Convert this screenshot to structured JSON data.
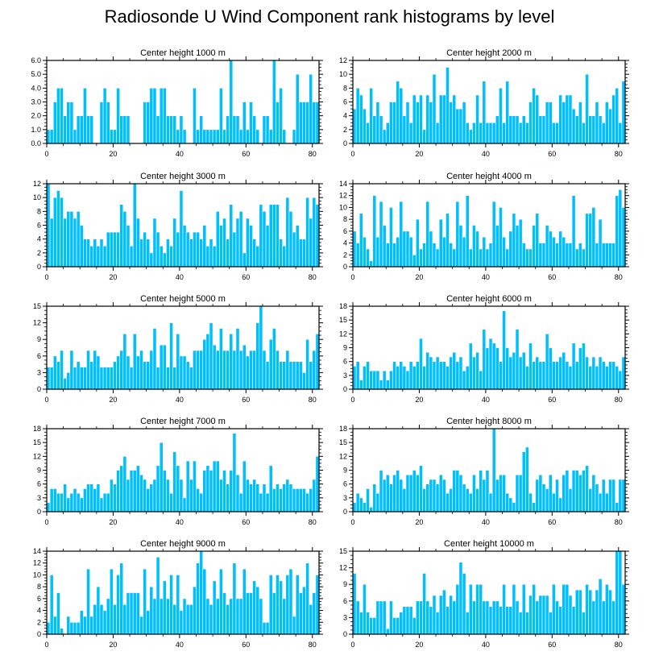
{
  "title": "Radiosonde U Wind Component rank histograms by level",
  "colors": {
    "bar": "#00BFFF",
    "bar_edge": "#ffffff",
    "axis": "#000000"
  },
  "chart_data": [
    {
      "type": "bar",
      "title": "Center height 1000 m",
      "xlim": [
        0,
        82
      ],
      "xticks": [
        0,
        20,
        40,
        60,
        80
      ],
      "ylim": [
        0,
        6
      ],
      "yticks": [
        "0.0",
        "1.0",
        "2.0",
        "3.0",
        "4.0",
        "5.0",
        "6.0"
      ],
      "values": [
        1,
        1,
        3,
        4,
        4,
        2,
        3,
        3,
        1,
        2,
        2,
        4,
        2,
        2,
        0,
        0,
        3,
        4,
        3,
        1,
        1,
        4,
        2,
        2,
        2,
        0,
        0,
        0,
        0,
        3,
        3,
        4,
        4,
        2,
        4,
        4,
        2,
        2,
        2,
        1,
        2,
        1,
        0,
        0,
        4,
        1,
        2,
        1,
        1,
        1,
        1,
        1,
        4,
        1,
        2,
        6,
        2,
        2,
        1,
        3,
        1,
        3,
        2,
        1,
        0,
        2,
        2,
        1,
        6,
        3,
        4,
        1,
        0,
        0,
        1,
        5,
        3,
        3,
        3,
        5,
        3,
        3
      ]
    },
    {
      "type": "bar",
      "title": "Center height 2000 m",
      "xlim": [
        0,
        82
      ],
      "xticks": [
        0,
        20,
        40,
        60,
        80
      ],
      "ylim": [
        0,
        12
      ],
      "yticks": [
        "0",
        "2",
        "4",
        "6",
        "8",
        "10",
        "12"
      ],
      "values": [
        5,
        8,
        7,
        5,
        3,
        8,
        4,
        6,
        4,
        2,
        3,
        6,
        6,
        9,
        8,
        4,
        6,
        3,
        7,
        6,
        7,
        2,
        7,
        6,
        10,
        3,
        7,
        7,
        11,
        6,
        7,
        5,
        5,
        6,
        3,
        2,
        3,
        7,
        3,
        9,
        3,
        3,
        3,
        4,
        8,
        3,
        9,
        4,
        4,
        4,
        3,
        4,
        3,
        6,
        8,
        7,
        4,
        4,
        6,
        6,
        3,
        3,
        7,
        6,
        7,
        7,
        5,
        4,
        6,
        3,
        10,
        4,
        4,
        6,
        4,
        3,
        6,
        5,
        7,
        8,
        3,
        9
      ]
    },
    {
      "type": "bar",
      "title": "Center height 3000 m",
      "xlim": [
        0,
        82
      ],
      "xticks": [
        0,
        20,
        40,
        60,
        80
      ],
      "ylim": [
        0,
        12
      ],
      "yticks": [
        "0",
        "2",
        "4",
        "6",
        "8",
        "10",
        "12"
      ],
      "values": [
        12,
        7,
        10,
        11,
        10,
        7,
        8,
        8,
        7,
        8,
        6,
        4,
        4,
        3,
        4,
        3,
        4,
        3,
        5,
        5,
        5,
        5,
        9,
        8,
        6,
        3,
        12,
        7,
        4,
        5,
        4,
        2,
        7,
        5,
        3,
        2,
        4,
        3,
        7,
        5,
        11,
        6,
        5,
        4,
        5,
        5,
        4,
        6,
        3,
        4,
        3,
        8,
        6,
        7,
        4,
        9,
        5,
        7,
        8,
        2,
        7,
        6,
        4,
        3,
        9,
        8,
        6,
        9,
        9,
        9,
        4,
        3,
        10,
        8,
        5,
        6,
        4,
        4,
        10,
        7,
        10,
        9
      ]
    },
    {
      "type": "bar",
      "title": "Center height 4000 m",
      "xlim": [
        0,
        82
      ],
      "xticks": [
        0,
        20,
        40,
        60,
        80
      ],
      "ylim": [
        0,
        14
      ],
      "yticks": [
        "0",
        "2",
        "4",
        "6",
        "8",
        "10",
        "12",
        "14"
      ],
      "values": [
        6,
        4,
        9,
        5,
        3,
        1,
        12,
        5,
        11,
        7,
        4,
        10,
        4,
        5,
        11,
        6,
        6,
        5,
        2,
        8,
        3,
        4,
        11,
        6,
        4,
        3,
        8,
        5,
        9,
        4,
        3,
        11,
        7,
        5,
        12,
        3,
        7,
        6,
        3,
        5,
        3,
        4,
        11,
        7,
        10,
        5,
        3,
        6,
        9,
        7,
        8,
        4,
        3,
        3,
        7,
        9,
        4,
        4,
        7,
        6,
        5,
        4,
        6,
        5,
        4,
        4,
        12,
        3,
        4,
        3,
        9,
        9,
        10,
        4,
        8,
        4,
        4,
        4,
        4,
        12,
        13,
        10
      ]
    },
    {
      "type": "bar",
      "title": "Center height 5000 m",
      "xlim": [
        0,
        82
      ],
      "xticks": [
        0,
        20,
        40,
        60,
        80
      ],
      "ylim": [
        0,
        15
      ],
      "yticks": [
        "0",
        "3",
        "6",
        "9",
        "12",
        "15"
      ],
      "values": [
        4,
        4,
        6,
        5,
        7,
        2,
        3,
        7,
        4,
        5,
        4,
        4,
        7,
        5,
        7,
        6,
        4,
        4,
        4,
        4,
        5,
        6,
        7,
        10,
        6,
        4,
        10,
        6,
        7,
        5,
        5,
        7,
        11,
        4,
        8,
        8,
        4,
        12,
        4,
        10,
        6,
        6,
        5,
        4,
        7,
        7,
        7,
        9,
        10,
        12,
        8,
        7,
        11,
        7,
        7,
        10,
        7,
        11,
        7,
        8,
        6,
        7,
        7,
        12,
        15,
        7,
        5,
        9,
        11,
        7,
        5,
        5,
        7,
        5,
        5,
        5,
        5,
        3,
        9,
        5,
        7,
        10
      ]
    },
    {
      "type": "bar",
      "title": "Center height 6000 m",
      "xlim": [
        0,
        82
      ],
      "xticks": [
        0,
        20,
        40,
        60,
        80
      ],
      "ylim": [
        0,
        18
      ],
      "yticks": [
        "0",
        "3",
        "6",
        "9",
        "12",
        "15",
        "18"
      ],
      "values": [
        5,
        6,
        2,
        5,
        6,
        4,
        4,
        4,
        2,
        4,
        2,
        4,
        6,
        5,
        6,
        5,
        4,
        6,
        5,
        6,
        11,
        5,
        8,
        7,
        6,
        7,
        6,
        6,
        5,
        7,
        8,
        6,
        7,
        4,
        5,
        10,
        7,
        8,
        4,
        13,
        9,
        11,
        10,
        9,
        6,
        17,
        9,
        7,
        8,
        13,
        7,
        8,
        5,
        10,
        6,
        7,
        6,
        6,
        12,
        9,
        6,
        6,
        7,
        8,
        6,
        5,
        10,
        6,
        9,
        10,
        7,
        5,
        7,
        5,
        7,
        6,
        5,
        6,
        6,
        5,
        4,
        7
      ]
    },
    {
      "type": "bar",
      "title": "Center height 7000 m",
      "xlim": [
        0,
        82
      ],
      "xticks": [
        0,
        20,
        40,
        60,
        80
      ],
      "ylim": [
        0,
        18
      ],
      "yticks": [
        "0",
        "3",
        "6",
        "9",
        "12",
        "15",
        "18"
      ],
      "values": [
        2,
        5,
        5,
        4,
        4,
        6,
        3,
        4,
        5,
        4,
        3,
        5,
        6,
        6,
        5,
        6,
        3,
        4,
        4,
        7,
        6,
        9,
        10,
        12,
        7,
        9,
        9,
        10,
        8,
        7,
        5,
        6,
        7,
        10,
        15,
        9,
        7,
        4,
        13,
        10,
        7,
        3,
        11,
        7,
        11,
        5,
        4,
        9,
        10,
        9,
        11,
        11,
        7,
        9,
        6,
        9,
        17,
        8,
        4,
        11,
        7,
        6,
        7,
        6,
        4,
        6,
        4,
        10,
        5,
        6,
        5,
        6,
        7,
        6,
        5,
        5,
        5,
        5,
        4,
        5,
        7,
        12
      ]
    },
    {
      "type": "bar",
      "title": "Center height 8000 m",
      "xlim": [
        0,
        82
      ],
      "xticks": [
        0,
        20,
        40,
        60,
        80
      ],
      "ylim": [
        0,
        18
      ],
      "yticks": [
        "0",
        "3",
        "6",
        "9",
        "12",
        "15",
        "18"
      ],
      "values": [
        2,
        4,
        3,
        2,
        5,
        1,
        6,
        4,
        9,
        7,
        8,
        6,
        8,
        9,
        7,
        5,
        8,
        8,
        9,
        8,
        10,
        5,
        6,
        7,
        7,
        6,
        8,
        7,
        4,
        5,
        9,
        9,
        8,
        6,
        5,
        4,
        8,
        5,
        9,
        7,
        9,
        4,
        18,
        7,
        8,
        8,
        4,
        3,
        2,
        8,
        8,
        13,
        14,
        4,
        2,
        7,
        8,
        6,
        5,
        8,
        4,
        7,
        3,
        8,
        9,
        5,
        9,
        9,
        8,
        9,
        10,
        5,
        8,
        6,
        4,
        7,
        4,
        7,
        7,
        2,
        7,
        7
      ]
    },
    {
      "type": "bar",
      "title": "Center height 9000 m",
      "xlim": [
        0,
        82
      ],
      "xticks": [
        0,
        20,
        40,
        60,
        80
      ],
      "ylim": [
        0,
        14
      ],
      "yticks": [
        "0",
        "2",
        "4",
        "6",
        "8",
        "10",
        "12",
        "14"
      ],
      "values": [
        2,
        10,
        3,
        7,
        1,
        0,
        3,
        2,
        2,
        2,
        4,
        3,
        11,
        3,
        5,
        8,
        5,
        4,
        6,
        11,
        5,
        10,
        12,
        5,
        7,
        7,
        7,
        7,
        3,
        11,
        4,
        8,
        6,
        13,
        6,
        9,
        6,
        10,
        5,
        10,
        4,
        6,
        5,
        5,
        8,
        12,
        14,
        11,
        6,
        5,
        9,
        6,
        11,
        7,
        5,
        6,
        12,
        6,
        6,
        11,
        7,
        7,
        9,
        8,
        6,
        2,
        2,
        10,
        7,
        10,
        9,
        6,
        10,
        11,
        3,
        10,
        7,
        8,
        12,
        5,
        7,
        10
      ]
    },
    {
      "type": "bar",
      "title": "Center height 10000 m",
      "xlim": [
        0,
        82
      ],
      "xticks": [
        0,
        20,
        40,
        60,
        80
      ],
      "ylim": [
        0,
        15
      ],
      "yticks": [
        "0",
        "3",
        "6",
        "9",
        "12",
        "15"
      ],
      "values": [
        11,
        6,
        4,
        9,
        4,
        3,
        3,
        6,
        6,
        6,
        1,
        6,
        3,
        3,
        4,
        5,
        5,
        5,
        3,
        6,
        6,
        11,
        6,
        5,
        7,
        4,
        7,
        8,
        5,
        7,
        6,
        9,
        13,
        11,
        4,
        9,
        6,
        9,
        9,
        6,
        6,
        5,
        6,
        6,
        5,
        9,
        5,
        5,
        9,
        6,
        4,
        9,
        4,
        7,
        9,
        6,
        7,
        7,
        7,
        4,
        9,
        6,
        5,
        9,
        9,
        7,
        5,
        8,
        8,
        4,
        9,
        8,
        6,
        8,
        10,
        6,
        9,
        8,
        6,
        15,
        15,
        9
      ]
    }
  ]
}
